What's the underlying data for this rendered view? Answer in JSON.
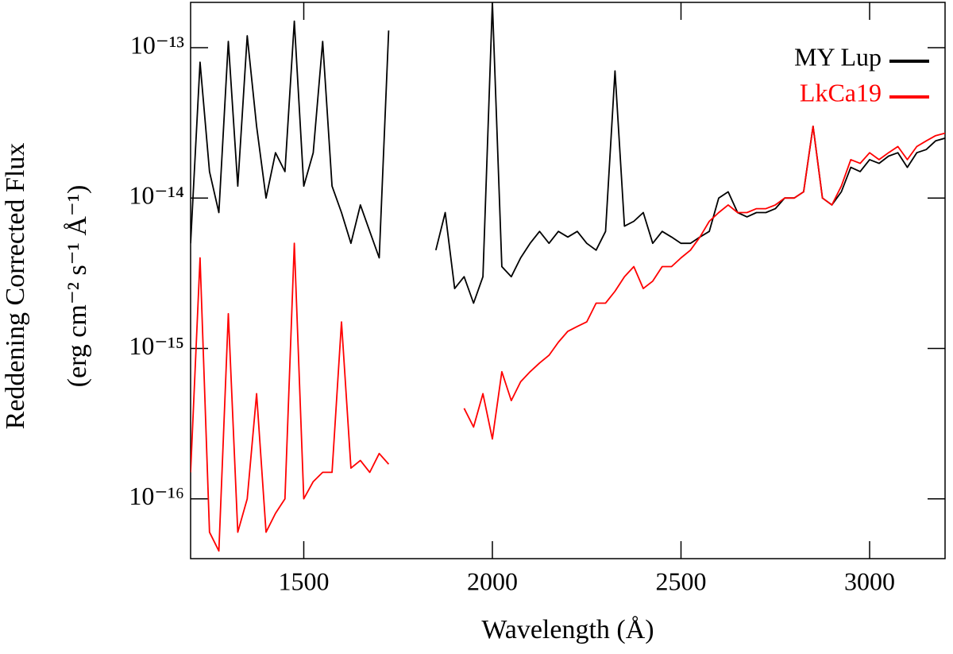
{
  "chart_data": {
    "type": "line",
    "xlabel": "Wavelength (Å)",
    "ylabel": [
      "Reddening Corrected Flux",
      "(erg cm⁻² s⁻¹ Å⁻¹)"
    ],
    "x": [
      1200,
      1225,
      1250,
      1275,
      1300,
      1325,
      1350,
      1375,
      1400,
      1425,
      1450,
      1475,
      1500,
      1525,
      1550,
      1575,
      1600,
      1625,
      1650,
      1675,
      1700,
      1725,
      1750,
      1775,
      1800,
      1825,
      1850,
      1875,
      1900,
      1925,
      1950,
      1975,
      2000,
      2025,
      2050,
      2075,
      2100,
      2125,
      2150,
      2175,
      2200,
      2225,
      2250,
      2275,
      2300,
      2325,
      2350,
      2375,
      2400,
      2425,
      2450,
      2475,
      2500,
      2525,
      2550,
      2575,
      2600,
      2625,
      2650,
      2675,
      2700,
      2725,
      2750,
      2775,
      2800,
      2825,
      2850,
      2875,
      2900,
      2925,
      2950,
      2975,
      3000,
      3025,
      3050,
      3075,
      3100,
      3125,
      3150,
      3175,
      3200
    ],
    "series": [
      {
        "name": "MY Lup",
        "color": "#000000",
        "values": [
          5e-15,
          8e-14,
          1.5e-14,
          8e-15,
          1.1e-13,
          1.2e-14,
          1.2e-13,
          3e-14,
          1e-14,
          2e-14,
          1.5e-14,
          1.5e-13,
          1.2e-14,
          2e-14,
          1.1e-13,
          1.2e-14,
          8e-15,
          5e-15,
          9e-15,
          6e-15,
          4e-15,
          1.3e-13,
          null,
          null,
          null,
          null,
          4.5e-15,
          8e-15,
          2.5e-15,
          3e-15,
          2e-15,
          3e-15,
          2e-13,
          3.5e-15,
          3e-15,
          4e-15,
          5e-15,
          6e-15,
          5e-15,
          6e-15,
          5.5e-15,
          6e-15,
          5e-15,
          4.5e-15,
          6e-15,
          7e-14,
          6.5e-15,
          7e-15,
          8e-15,
          5e-15,
          6e-15,
          5.5e-15,
          5e-15,
          5e-15,
          5.5e-15,
          6e-15,
          1e-14,
          1.1e-14,
          8e-15,
          7.5e-15,
          8e-15,
          8e-15,
          8.5e-15,
          1e-14,
          1e-14,
          1.1e-14,
          3e-14,
          1e-14,
          9e-15,
          1.1e-14,
          1.6e-14,
          1.5e-14,
          1.8e-14,
          1.7e-14,
          1.9e-14,
          2e-14,
          1.6e-14,
          2e-14,
          2.1e-14,
          2.4e-14,
          2.5e-14
        ]
      },
      {
        "name": "LkCa19",
        "color": "#ff0000",
        "values": [
          1.5e-16,
          4e-15,
          6e-17,
          4.5e-17,
          1.7e-15,
          6e-17,
          1e-16,
          5e-16,
          6e-17,
          8e-17,
          1e-16,
          5e-15,
          1e-16,
          1.3e-16,
          1.5e-16,
          1.5e-16,
          1.5e-15,
          1.6e-16,
          1.8e-16,
          1.5e-16,
          2e-16,
          1.7e-16,
          null,
          null,
          null,
          null,
          null,
          null,
          null,
          4e-16,
          3e-16,
          5e-16,
          2.5e-16,
          7e-16,
          4.5e-16,
          6e-16,
          7e-16,
          8e-16,
          9e-16,
          1.1e-15,
          1.3e-15,
          1.4e-15,
          1.5e-15,
          2e-15,
          2e-15,
          2.4e-15,
          3e-15,
          3.5e-15,
          2.5e-15,
          2.8e-15,
          3.5e-15,
          3.5e-15,
          4e-15,
          4.5e-15,
          5.5e-15,
          7e-15,
          8e-15,
          9e-15,
          8e-15,
          8e-15,
          8.5e-15,
          8.5e-15,
          9e-15,
          1e-14,
          1e-14,
          1.1e-14,
          3e-14,
          1e-14,
          9e-15,
          1.2e-14,
          1.8e-14,
          1.7e-14,
          2e-14,
          1.8e-14,
          2e-14,
          2.2e-14,
          1.8e-14,
          2.2e-14,
          2.4e-14,
          2.6e-14,
          2.7e-14
        ]
      }
    ],
    "xlim": [
      1200,
      3200
    ],
    "xticks": [
      1500,
      2000,
      2500,
      3000
    ],
    "ylim": [
      4e-17,
      2e-13
    ],
    "ylog": true,
    "yticks": [
      {
        "value": 1e-16,
        "label": "10⁻¹⁶"
      },
      {
        "value": 1e-15,
        "label": "10⁻¹⁵"
      },
      {
        "value": 1e-14,
        "label": "10⁻¹⁴"
      },
      {
        "value": 1e-13,
        "label": "10⁻¹³"
      }
    ],
    "legend": "upper right",
    "grid": false
  }
}
